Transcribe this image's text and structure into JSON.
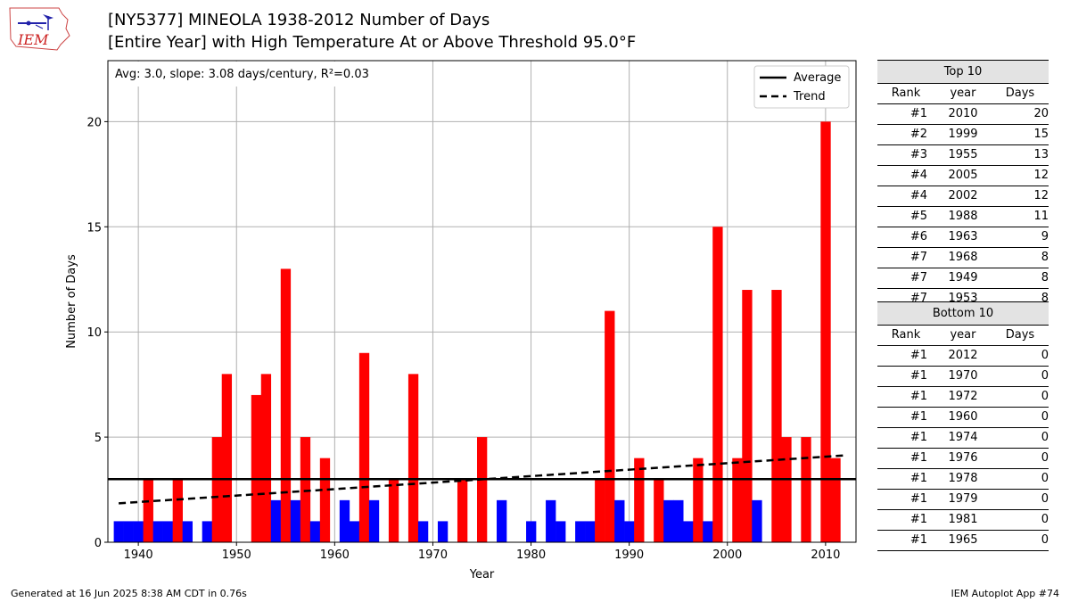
{
  "title_line1": "[NY5377] MINEOLA 1938-2012 Number of Days",
  "title_line2": "[Entire Year] with High Temperature At or Above Threshold 95.0°F",
  "logo_text": "IEM",
  "footer_left": "Generated at 16 Jun 2025 8:38 AM CDT in 0.76s",
  "footer_right": "IEM Autoplot App #74",
  "colors": {
    "above": "#ff0000",
    "below": "#0000ff",
    "grid": "#b0b0b0"
  },
  "chart_data": {
    "type": "bar",
    "xlabel": "Year",
    "ylabel": "Number of Days",
    "xlim": [
      1936.9,
      2013.1
    ],
    "ylim": [
      0,
      22.9
    ],
    "xticks": [
      1940,
      1950,
      1960,
      1970,
      1980,
      1990,
      2000,
      2010
    ],
    "yticks": [
      0,
      5,
      10,
      15,
      20
    ],
    "grid": true,
    "annotation": "Avg: 3.0, slope: 3.08 days/century, R²=0.03",
    "average": 3.0,
    "trend": {
      "start": [
        1938,
        1.85
      ],
      "end": [
        2012,
        4.13
      ]
    },
    "legend": {
      "placement": "top-right",
      "entries": [
        "Average",
        "Trend"
      ]
    },
    "years": [
      1938,
      1939,
      1940,
      1941,
      1942,
      1943,
      1944,
      1945,
      1946,
      1947,
      1948,
      1949,
      1950,
      1951,
      1952,
      1953,
      1954,
      1955,
      1956,
      1957,
      1958,
      1959,
      1960,
      1961,
      1962,
      1963,
      1964,
      1965,
      1966,
      1967,
      1968,
      1969,
      1970,
      1971,
      1972,
      1973,
      1974,
      1975,
      1976,
      1977,
      1978,
      1979,
      1980,
      1981,
      1982,
      1983,
      1984,
      1985,
      1986,
      1987,
      1988,
      1989,
      1990,
      1991,
      1992,
      1993,
      1994,
      1995,
      1996,
      1997,
      1998,
      1999,
      2000,
      2001,
      2002,
      2003,
      2004,
      2005,
      2006,
      2007,
      2008,
      2009,
      2010,
      2011,
      2012
    ],
    "values": [
      1,
      1,
      1,
      3,
      1,
      1,
      3,
      1,
      0,
      1,
      5,
      8,
      0,
      0,
      7,
      8,
      2,
      13,
      2,
      5,
      1,
      4,
      0,
      2,
      1,
      9,
      2,
      0,
      3,
      0,
      8,
      1,
      0,
      1,
      0,
      3,
      0,
      5,
      0,
      2,
      0,
      0,
      1,
      0,
      2,
      1,
      0,
      1,
      1,
      3,
      11,
      2,
      1,
      4,
      0,
      3,
      2,
      2,
      1,
      4,
      1,
      15,
      0,
      4,
      12,
      2,
      0,
      12,
      5,
      0,
      5,
      0,
      20,
      4,
      0
    ]
  },
  "top10": {
    "header": "Top 10",
    "columns": [
      "Rank",
      "year",
      "Days"
    ],
    "rows": [
      [
        "#1",
        "2010",
        "20"
      ],
      [
        "#2",
        "1999",
        "15"
      ],
      [
        "#3",
        "1955",
        "13"
      ],
      [
        "#4",
        "2005",
        "12"
      ],
      [
        "#4",
        "2002",
        "12"
      ],
      [
        "#5",
        "1988",
        "11"
      ],
      [
        "#6",
        "1963",
        "9"
      ],
      [
        "#7",
        "1968",
        "8"
      ],
      [
        "#7",
        "1949",
        "8"
      ],
      [
        "#7",
        "1953",
        "8"
      ]
    ]
  },
  "bottom10": {
    "header": "Bottom 10",
    "columns": [
      "Rank",
      "year",
      "Days"
    ],
    "rows": [
      [
        "#1",
        "2012",
        "0"
      ],
      [
        "#1",
        "1970",
        "0"
      ],
      [
        "#1",
        "1972",
        "0"
      ],
      [
        "#1",
        "1960",
        "0"
      ],
      [
        "#1",
        "1974",
        "0"
      ],
      [
        "#1",
        "1976",
        "0"
      ],
      [
        "#1",
        "1978",
        "0"
      ],
      [
        "#1",
        "1979",
        "0"
      ],
      [
        "#1",
        "1981",
        "0"
      ],
      [
        "#1",
        "1965",
        "0"
      ]
    ]
  }
}
